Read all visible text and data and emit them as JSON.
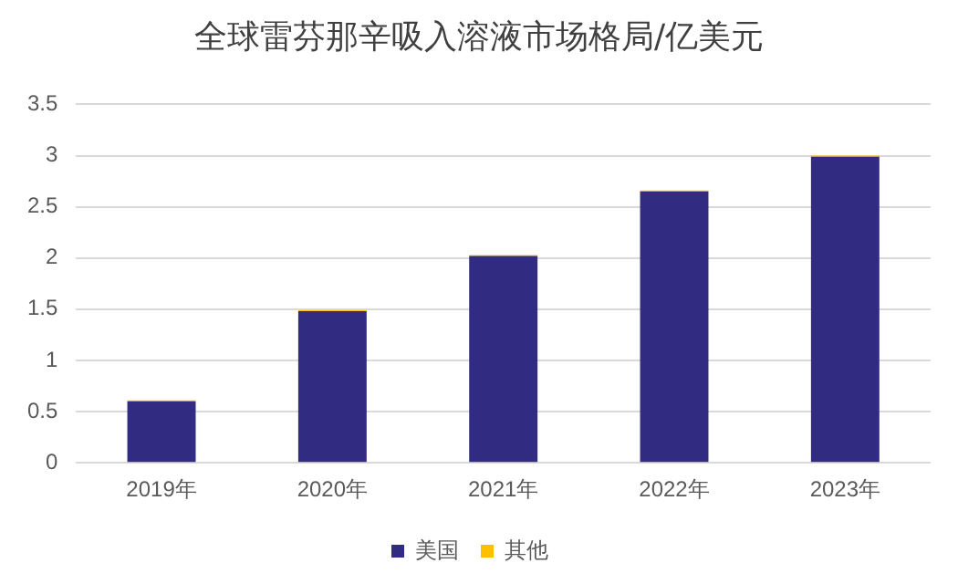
{
  "chart_data": {
    "type": "bar",
    "title": "全球雷芬那辛吸入溶液市场格局/亿美元",
    "categories": [
      "2019年",
      "2020年",
      "2021年",
      "2022年",
      "2023年"
    ],
    "stacked": true,
    "series": [
      {
        "name": "美国",
        "color": "#312c81",
        "values": [
          0.6,
          1.48,
          2.02,
          2.65,
          2.99
        ]
      },
      {
        "name": "其他",
        "color": "#ffc000",
        "values": [
          0.01,
          0.01,
          0.01,
          0.01,
          0.01
        ]
      }
    ],
    "ylim": [
      0,
      3.5
    ],
    "yticks": [
      0,
      0.5,
      1,
      1.5,
      2,
      2.5,
      3,
      3.5
    ],
    "grid": "y",
    "legend": "bottom"
  }
}
